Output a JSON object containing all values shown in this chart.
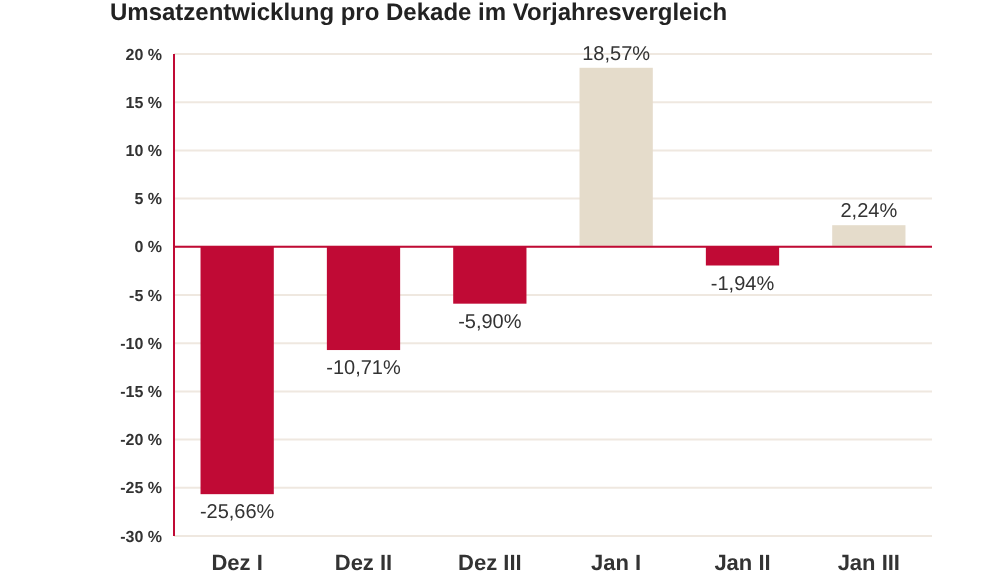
{
  "chart_data": {
    "type": "bar",
    "title": "Umsatzentwicklung pro Dekade im Vorjahresvergleich",
    "categories": [
      "Dez I",
      "Dez II",
      "Dez III",
      "Jan I",
      "Jan II",
      "Jan III"
    ],
    "values": [
      -25.66,
      -10.71,
      -5.9,
      18.57,
      -1.94,
      2.24
    ],
    "colors": [
      "#c00a35",
      "#c00a35",
      "#c00a35",
      "#e5dccb",
      "#c00a35",
      "#e5dccb"
    ],
    "value_labels": [
      "-25,66%",
      "-10,71%",
      "-5,90%",
      "18,57%",
      "-1,94%",
      "2,24%"
    ],
    "ylim": [
      -30,
      20
    ],
    "yticks": [
      {
        "value": -30,
        "label": "-30 %"
      },
      {
        "value": -25,
        "label": "-25 %"
      },
      {
        "value": -20,
        "label": "-20 %"
      },
      {
        "value": -15,
        "label": "-15 %"
      },
      {
        "value": -10,
        "label": "-10 %"
      },
      {
        "value": -5,
        "label": "-5 %"
      },
      {
        "value": 0,
        "label": "0 %"
      },
      {
        "value": 5,
        "label": "5 %"
      },
      {
        "value": 10,
        "label": "10 %"
      },
      {
        "value": 15,
        "label": "15 %"
      },
      {
        "value": 20,
        "label": "20 %"
      }
    ],
    "grid": "y",
    "ref_lines": [
      {
        "axis": "y",
        "value": 0,
        "color": "#c00a35"
      }
    ]
  }
}
